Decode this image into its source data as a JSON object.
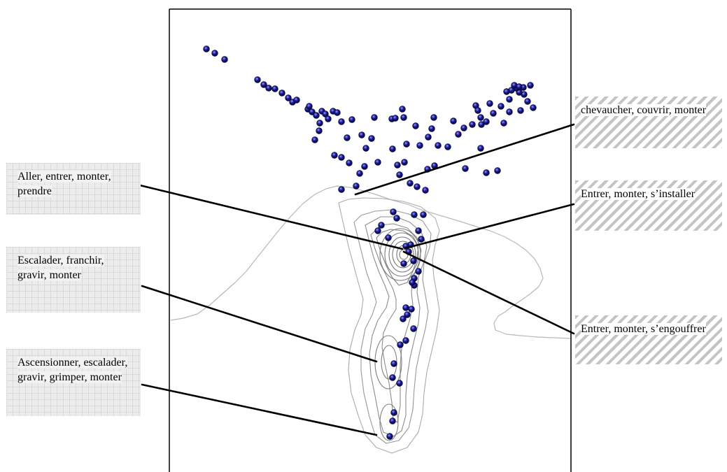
{
  "labels": {
    "aller": "Aller, entrer, monter, prendre",
    "escalader": "Escalader, franchir, gravir, monter",
    "ascension": "Ascensionner, escalader, gravir, grimper, monter",
    "chevaucher": "chevaucher, couvrir, monter",
    "installer": "Entrer, monter, s’installer",
    "engouffrer": "Entrer, monter, s’engouffrer"
  },
  "colors": {
    "point": "#1a1a9a",
    "contour": "#8c8c8c",
    "leader": "#000000",
    "frame": "#000000"
  }
}
